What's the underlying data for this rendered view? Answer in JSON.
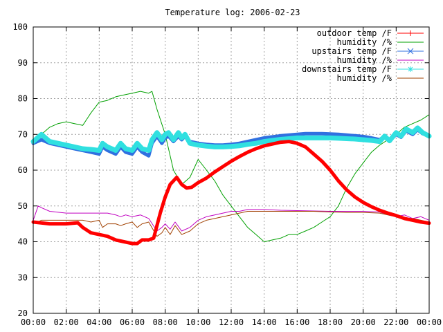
{
  "chart_data": {
    "type": "line",
    "title": "Temperature log: 2006-02-23",
    "xlabel": "",
    "ylabel": "",
    "ylim": [
      20,
      100
    ],
    "xlim_hours": [
      0,
      24
    ],
    "x_tick_labels": [
      "00:00",
      "02:00",
      "04:00",
      "06:00",
      "08:00",
      "10:00",
      "12:00",
      "14:00",
      "16:00",
      "18:00",
      "20:00",
      "22:00",
      "00:00"
    ],
    "y_ticks": [
      20,
      30,
      40,
      50,
      60,
      70,
      80,
      90,
      100
    ],
    "grid": true,
    "legend_position": "top-right",
    "series": [
      {
        "name": "outdoor temp /F",
        "color": "#ff0000",
        "marker": "plus",
        "x": [
          0,
          1,
          2,
          2.7,
          3,
          3.5,
          4,
          4.5,
          5,
          5.5,
          6,
          6.3,
          6.6,
          7,
          7.3,
          7.7,
          8,
          8.3,
          8.7,
          9,
          9.3,
          9.6,
          10,
          10.5,
          11,
          11.5,
          12,
          12.5,
          13,
          13.5,
          14,
          14.5,
          15,
          15.5,
          16,
          16.5,
          17,
          17.5,
          18,
          18.5,
          19,
          19.5,
          20,
          20.5,
          21,
          21.5,
          22,
          22.5,
          23,
          23.5,
          24
        ],
        "y": [
          45.5,
          45.0,
          45.0,
          45.3,
          44.0,
          42.5,
          42.0,
          41.5,
          40.5,
          40.0,
          39.5,
          39.5,
          40.5,
          40.5,
          41.0,
          48.0,
          52.5,
          56.0,
          58.0,
          56.0,
          55.0,
          55.2,
          56.5,
          57.8,
          59.5,
          61.0,
          62.5,
          63.8,
          65.0,
          66.0,
          66.8,
          67.3,
          67.8,
          68.0,
          67.5,
          66.5,
          64.5,
          62.5,
          60.0,
          57.0,
          54.5,
          52.5,
          51.0,
          49.8,
          48.8,
          48.0,
          47.3,
          46.5,
          46.0,
          45.5,
          45.2
        ]
      },
      {
        "name": "humidity /%",
        "color": "#00a000",
        "marker": "none",
        "x": [
          0,
          0.5,
          1,
          1.5,
          2,
          2.5,
          3,
          3.5,
          4,
          4.5,
          5,
          5.5,
          6,
          6.5,
          7,
          7.2,
          7.5,
          8,
          8.5,
          9,
          9.5,
          10,
          10.5,
          11,
          11.5,
          12,
          12.5,
          13,
          13.5,
          14,
          14.5,
          15,
          15.5,
          16,
          16.5,
          17,
          17.5,
          18,
          18.5,
          19,
          19.5,
          20,
          20.5,
          21,
          21.5,
          22,
          22.5,
          23,
          23.5,
          24
        ],
        "y": [
          68,
          70,
          72,
          73,
          73.5,
          73,
          72.5,
          76,
          79,
          79.5,
          80.5,
          81,
          81.5,
          82,
          81.5,
          82,
          77,
          70,
          60,
          56,
          58,
          63,
          60,
          57,
          53,
          50,
          47,
          44,
          42,
          40,
          40.5,
          41,
          42,
          42,
          43,
          44,
          45.5,
          47,
          50,
          55,
          59,
          62,
          65,
          67,
          68.5,
          70,
          72,
          73,
          74,
          75.5
        ]
      },
      {
        "name": "upstairs temp /F",
        "color": "#3070e0",
        "marker": "cross",
        "x": [
          0,
          0.5,
          1,
          1.5,
          2,
          2.5,
          3,
          3.5,
          4,
          4.2,
          4.5,
          5,
          5.3,
          5.6,
          6,
          6.3,
          6.6,
          7,
          7.2,
          7.5,
          7.8,
          8,
          8.2,
          8.5,
          8.8,
          9,
          9.2,
          9.5,
          10,
          10.5,
          11,
          11.5,
          12,
          12.5,
          13,
          13.5,
          14,
          14.5,
          15,
          15.5,
          16,
          16.5,
          17,
          17.5,
          18,
          18.5,
          19,
          19.5,
          20,
          20.5,
          21,
          21.3,
          21.6,
          22,
          22.3,
          22.6,
          23,
          23.3,
          23.6,
          24
        ],
        "y": [
          67.5,
          68.5,
          67.5,
          67,
          66.5,
          66,
          65.5,
          65,
          64.5,
          66.5,
          65.5,
          64.5,
          66.5,
          65,
          64.5,
          66.5,
          65,
          64,
          67.5,
          69.5,
          67.5,
          69,
          69.5,
          68,
          69.5,
          68.5,
          69.5,
          68,
          67.5,
          67.2,
          67,
          67,
          67.2,
          67.5,
          68,
          68.5,
          69,
          69.3,
          69.6,
          69.8,
          70,
          70.2,
          70.2,
          70.2,
          70.1,
          70,
          69.8,
          69.6,
          69.4,
          69,
          68.5,
          69.5,
          68.2,
          70,
          69.2,
          71,
          70,
          71.3,
          70.2,
          69.5
        ]
      },
      {
        "name": "humidity /%",
        "color": "#c000c0",
        "marker": "none",
        "x": [
          0,
          0.3,
          0.5,
          1,
          2,
          3,
          4,
          4.5,
          5,
          5.3,
          5.6,
          6,
          6.5,
          7,
          7.5,
          7.8,
          8,
          8.3,
          8.6,
          9,
          9.5,
          10,
          10.5,
          11,
          11.5,
          12,
          12.5,
          13,
          14,
          15,
          16,
          17,
          18,
          19,
          20,
          21,
          21.5,
          22,
          22.5,
          23,
          23.5,
          24
        ],
        "y": [
          46,
          50,
          49.5,
          48.5,
          48,
          48,
          48,
          48,
          47.5,
          47,
          47.5,
          47,
          47.5,
          46.5,
          43,
          44,
          45,
          43.5,
          45.5,
          43,
          44,
          46,
          47,
          47.5,
          48,
          48.5,
          48.5,
          49,
          49,
          48.8,
          48.7,
          48.6,
          48.5,
          48.5,
          48.5,
          48.3,
          47.5,
          47,
          47.5,
          46.5,
          47,
          46
        ]
      },
      {
        "name": "downstairs temp /F",
        "color": "#30e0e0",
        "marker": "star",
        "x": [
          0,
          0.5,
          1,
          1.5,
          2,
          2.5,
          3,
          3.5,
          4,
          4.2,
          4.5,
          5,
          5.3,
          5.6,
          6,
          6.3,
          6.6,
          7,
          7.2,
          7.5,
          7.8,
          8,
          8.2,
          8.5,
          8.8,
          9,
          9.2,
          9.5,
          10,
          10.5,
          11,
          11.5,
          12,
          12.5,
          13,
          13.5,
          14,
          14.5,
          15,
          15.5,
          16,
          16.5,
          17,
          17.5,
          18,
          18.5,
          19,
          19.5,
          20,
          20.5,
          21,
          21.3,
          21.6,
          22,
          22.3,
          22.6,
          23,
          23.3,
          23.6,
          24
        ],
        "y": [
          68,
          70,
          68,
          67.5,
          67,
          66.5,
          66,
          65.8,
          65.5,
          67.5,
          66.5,
          65.5,
          67.5,
          66,
          65.5,
          67.5,
          66,
          65.5,
          68.5,
          70.5,
          68.5,
          70,
          70.5,
          68.5,
          70.5,
          69,
          70,
          67.5,
          67,
          66.7,
          66.5,
          66.5,
          66.6,
          66.8,
          67.2,
          67.5,
          68,
          68.3,
          68.6,
          68.8,
          69,
          69,
          69,
          69,
          69,
          68.9,
          68.8,
          68.7,
          68.5,
          68.3,
          68,
          69.5,
          68.2,
          70.5,
          69.5,
          71.5,
          70.5,
          71.8,
          70.5,
          69.5
        ]
      },
      {
        "name": "humidity /%",
        "color": "#a04000",
        "marker": "none",
        "x": [
          0,
          0.5,
          1,
          2,
          3,
          3.5,
          4,
          4.2,
          4.5,
          5,
          5.3,
          5.6,
          6,
          6.3,
          6.6,
          7,
          7.5,
          7.8,
          8,
          8.3,
          8.6,
          9,
          9.5,
          10,
          10.5,
          11,
          11.5,
          12,
          12.5,
          13,
          14,
          15,
          16,
          17,
          18,
          19,
          20,
          21,
          21.5,
          22,
          22.5,
          23,
          23.5,
          24
        ],
        "y": [
          45,
          46,
          46,
          46,
          46,
          45.5,
          46,
          44,
          45,
          45,
          44.5,
          45,
          45.5,
          44,
          45,
          45.5,
          41.5,
          42.5,
          44,
          42,
          44.5,
          42,
          43,
          45,
          46,
          46.5,
          47,
          47.5,
          48,
          48.5,
          48.5,
          48.5,
          48.5,
          48.5,
          48.3,
          48.2,
          48.2,
          48,
          47.5,
          47,
          46.5,
          46.5,
          46,
          45.5
        ]
      }
    ]
  }
}
